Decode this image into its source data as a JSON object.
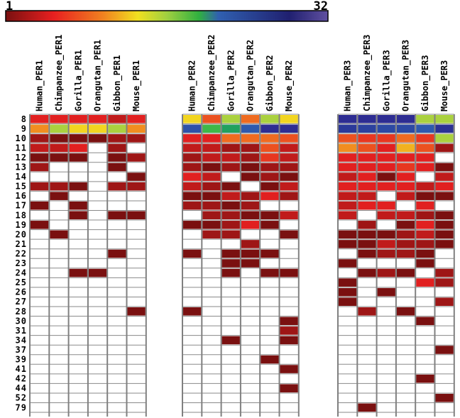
{
  "chart_data": {
    "type": "heatmap",
    "colorbar": {
      "min_label": "1",
      "max_label": "32",
      "range": [
        1,
        32
      ],
      "colors": [
        "#7a1010",
        "#e82020",
        "#f08020",
        "#f0e020",
        "#a0d040",
        "#30b040",
        "#3060b0",
        "#202070",
        "#6050a0"
      ]
    },
    "row_labels": [
      "8",
      "9",
      "10",
      "11",
      "12",
      "13",
      "14",
      "15",
      "16",
      "17",
      "18",
      "19",
      "20",
      "21",
      "22",
      "23",
      "24",
      "25",
      "26",
      "27",
      "28",
      "30",
      "31",
      "34",
      "37",
      "39",
      "41",
      "42",
      "44",
      "52",
      "79"
    ],
    "groups": [
      {
        "columns": [
          "Human_PER1",
          "Chimpanzee_PER1",
          "Gorilla_PER1",
          "Orangutan_PER1",
          "Gibbon_PER1",
          "Mouse_PER1"
        ],
        "values": [
          [
            4,
            4,
            4,
            4,
            3,
            4
          ],
          [
            8,
            13,
            10,
            10,
            13,
            8
          ],
          [
            2,
            1,
            1,
            1,
            2,
            2
          ],
          [
            3,
            3,
            4,
            null,
            2,
            null
          ],
          [
            1,
            1,
            1,
            null,
            1,
            2
          ],
          [
            2,
            null,
            null,
            null,
            1,
            null
          ],
          [
            null,
            null,
            null,
            null,
            null,
            1
          ],
          [
            2,
            2,
            1,
            null,
            2,
            2
          ],
          [
            null,
            1,
            null,
            null,
            null,
            null
          ],
          [
            1,
            null,
            1,
            null,
            null,
            null
          ],
          [
            null,
            null,
            1,
            null,
            1,
            1
          ],
          [
            1,
            null,
            null,
            null,
            null,
            null
          ],
          [
            null,
            1,
            null,
            null,
            null,
            null
          ],
          [
            null,
            null,
            null,
            null,
            null,
            null
          ],
          [
            null,
            null,
            null,
            null,
            1,
            null
          ],
          [
            null,
            null,
            null,
            null,
            null,
            null
          ],
          [
            null,
            null,
            1,
            1,
            null,
            null
          ],
          [
            null,
            null,
            null,
            null,
            null,
            null
          ],
          [
            null,
            null,
            null,
            null,
            null,
            null
          ],
          [
            null,
            null,
            null,
            null,
            null,
            null
          ],
          [
            null,
            null,
            null,
            null,
            null,
            1
          ],
          [
            null,
            null,
            null,
            null,
            null,
            null
          ],
          [
            null,
            null,
            null,
            null,
            null,
            null
          ],
          [
            null,
            null,
            null,
            null,
            null,
            null
          ],
          [
            null,
            null,
            null,
            null,
            null,
            null
          ],
          [
            null,
            null,
            null,
            null,
            null,
            null
          ],
          [
            null,
            null,
            null,
            null,
            null,
            null
          ],
          [
            null,
            null,
            null,
            null,
            null,
            null
          ],
          [
            null,
            null,
            null,
            null,
            null,
            null
          ],
          [
            null,
            null,
            null,
            null,
            null,
            null
          ],
          [
            null,
            null,
            null,
            null,
            null,
            null
          ]
        ]
      },
      {
        "columns": [
          "Human_PER2",
          "Chimpanzee_PER2",
          "Gorilla_PER2",
          "Orangutan_PER2",
          "Gibbon_PER2",
          "Mouse_PER2"
        ],
        "values": [
          [
            10,
            6,
            13,
            7,
            13,
            10
          ],
          [
            25,
            16,
            18,
            24,
            30,
            30
          ],
          [
            4,
            4,
            7,
            7,
            7,
            6
          ],
          [
            3,
            3,
            2,
            2,
            6,
            3
          ],
          [
            2,
            3,
            3,
            2,
            5,
            3
          ],
          [
            2,
            1,
            2,
            1,
            2,
            2
          ],
          [
            4,
            3,
            null,
            1,
            2,
            1
          ],
          [
            3,
            2,
            1,
            null,
            1,
            3
          ],
          [
            1,
            1,
            3,
            2,
            4,
            2
          ],
          [
            2,
            2,
            1,
            2,
            null,
            null
          ],
          [
            null,
            2,
            2,
            1,
            1,
            3
          ],
          [
            1,
            1,
            2,
            4,
            1,
            null
          ],
          [
            null,
            2,
            2,
            null,
            null,
            1
          ],
          [
            null,
            null,
            null,
            2,
            null,
            null
          ],
          [
            1,
            null,
            1,
            1,
            1,
            null
          ],
          [
            null,
            null,
            1,
            1,
            null,
            null
          ],
          [
            null,
            null,
            1,
            null,
            1,
            1
          ],
          [
            null,
            null,
            null,
            null,
            null,
            null
          ],
          [
            null,
            null,
            null,
            null,
            null,
            null
          ],
          [
            null,
            null,
            null,
            null,
            null,
            null
          ],
          [
            1,
            null,
            null,
            null,
            null,
            null
          ],
          [
            null,
            null,
            null,
            null,
            null,
            1
          ],
          [
            null,
            null,
            null,
            null,
            null,
            2
          ],
          [
            null,
            null,
            1,
            null,
            null,
            1
          ],
          [
            null,
            null,
            null,
            null,
            null,
            null
          ],
          [
            null,
            null,
            null,
            null,
            1,
            null
          ],
          [
            null,
            null,
            null,
            null,
            null,
            1
          ],
          [
            null,
            null,
            null,
            null,
            null,
            null
          ],
          [
            null,
            null,
            null,
            null,
            null,
            1
          ],
          [
            null,
            null,
            null,
            null,
            null,
            null
          ],
          [
            null,
            null,
            null,
            null,
            null,
            null
          ]
        ]
      },
      {
        "columns": [
          "Human_PER3",
          "Chimpanzee_PER3",
          "Gorilla_PER3",
          "Orangutan_PER3",
          "Gibbon_PER3",
          "Mouse_PER3"
        ],
        "values": [
          [
            30,
            30,
            30,
            30,
            13,
            13
          ],
          [
            28,
            27,
            26,
            26,
            24,
            29
          ],
          [
            6,
            5,
            5,
            7,
            5,
            13
          ],
          [
            8,
            6,
            4,
            9,
            6,
            2
          ],
          [
            4,
            4,
            4,
            4,
            4,
            null
          ],
          [
            4,
            4,
            4,
            5,
            4,
            1
          ],
          [
            3,
            4,
            1,
            4,
            null,
            3
          ],
          [
            4,
            4,
            4,
            4,
            3,
            4
          ],
          [
            3,
            3,
            null,
            3,
            1,
            1
          ],
          [
            3,
            4,
            4,
            null,
            4,
            null
          ],
          [
            3,
            null,
            3,
            3,
            2,
            1
          ],
          [
            null,
            2,
            null,
            1,
            4,
            1
          ],
          [
            1,
            1,
            1,
            2,
            3,
            1
          ],
          [
            1,
            1,
            3,
            2,
            2,
            1
          ],
          [
            null,
            1,
            2,
            2,
            1,
            null
          ],
          [
            1,
            null,
            null,
            null,
            1,
            null
          ],
          [
            null,
            1,
            2,
            1,
            null,
            2
          ],
          [
            1,
            null,
            null,
            null,
            4,
            2
          ],
          [
            1,
            null,
            1,
            null,
            null,
            null
          ],
          [
            1,
            null,
            null,
            null,
            null,
            2
          ],
          [
            null,
            2,
            null,
            1,
            null,
            null
          ],
          [
            null,
            null,
            null,
            null,
            1,
            null
          ],
          [
            null,
            null,
            null,
            null,
            null,
            null
          ],
          [
            null,
            null,
            null,
            null,
            null,
            null
          ],
          [
            null,
            null,
            null,
            null,
            null,
            1
          ],
          [
            null,
            null,
            null,
            null,
            null,
            null
          ],
          [
            null,
            null,
            null,
            null,
            null,
            null
          ],
          [
            null,
            null,
            null,
            null,
            1,
            null
          ],
          [
            null,
            null,
            null,
            null,
            null,
            null
          ],
          [
            null,
            null,
            null,
            null,
            null,
            1
          ],
          [
            null,
            1,
            null,
            null,
            null,
            null
          ]
        ]
      }
    ]
  }
}
